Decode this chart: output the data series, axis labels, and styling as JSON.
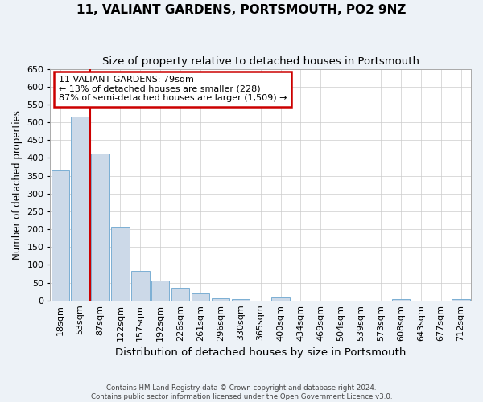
{
  "title": "11, VALIANT GARDENS, PORTSMOUTH, PO2 9NZ",
  "subtitle": "Size of property relative to detached houses in Portsmouth",
  "xlabel": "Distribution of detached houses by size in Portsmouth",
  "ylabel": "Number of detached properties",
  "categories": [
    "18sqm",
    "53sqm",
    "87sqm",
    "122sqm",
    "157sqm",
    "192sqm",
    "226sqm",
    "261sqm",
    "296sqm",
    "330sqm",
    "365sqm",
    "400sqm",
    "434sqm",
    "469sqm",
    "504sqm",
    "539sqm",
    "573sqm",
    "608sqm",
    "643sqm",
    "677sqm",
    "712sqm"
  ],
  "values": [
    365,
    515,
    413,
    207,
    82,
    55,
    35,
    20,
    7,
    5,
    0,
    8,
    0,
    0,
    0,
    0,
    0,
    5,
    0,
    0,
    4
  ],
  "bar_color": "#ccd9e8",
  "bar_edge_color": "#7bafd4",
  "red_line_index": 1.5,
  "annotation_text": "11 VALIANT GARDENS: 79sqm\n← 13% of detached houses are smaller (228)\n87% of semi-detached houses are larger (1,509) →",
  "annotation_box_color": "#ffffff",
  "annotation_box_edge_color": "#cc0000",
  "red_line_color": "#cc0000",
  "ylim": [
    0,
    650
  ],
  "yticks": [
    0,
    50,
    100,
    150,
    200,
    250,
    300,
    350,
    400,
    450,
    500,
    550,
    600,
    650
  ],
  "footnote": "Contains HM Land Registry data © Crown copyright and database right 2024.\nContains public sector information licensed under the Open Government Licence v3.0.",
  "bg_color": "#edf2f7",
  "plot_bg_color": "#ffffff",
  "title_fontsize": 11,
  "subtitle_fontsize": 9.5,
  "xlabel_fontsize": 9.5,
  "ylabel_fontsize": 8.5,
  "tick_fontsize": 8,
  "annot_fontsize": 8
}
